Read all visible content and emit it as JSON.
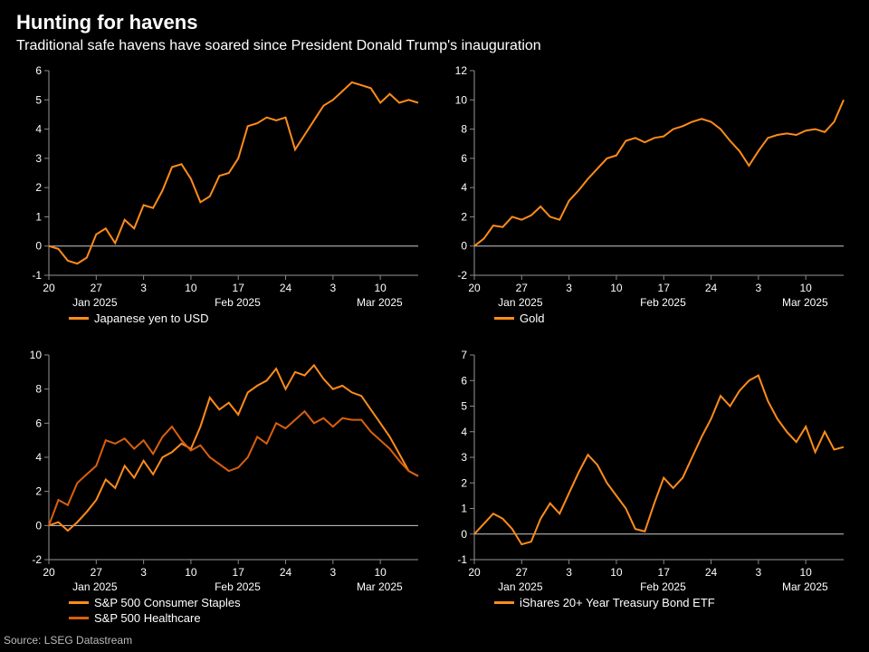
{
  "title": "Hunting for havens",
  "subtitle": "Traditional safe havens have soared since President Donald Trump's inauguration",
  "source": "Source: LSEG Datastream",
  "colors": {
    "bg": "#000000",
    "text": "#ffffff",
    "axis": "#999999",
    "zero": "#cccccc",
    "series1": "#ff8c1a",
    "series2": "#d95f0e"
  },
  "x_axis": {
    "ticks": [
      {
        "label": "20",
        "pos": 0
      },
      {
        "label": "27",
        "pos": 5
      },
      {
        "label": "3",
        "pos": 10
      },
      {
        "label": "10",
        "pos": 15
      },
      {
        "label": "17",
        "pos": 20
      },
      {
        "label": "24",
        "pos": 25
      },
      {
        "label": "3",
        "pos": 30
      },
      {
        "label": "10",
        "pos": 35
      }
    ],
    "months": [
      {
        "label": "Jan 2025",
        "pos": 2.5
      },
      {
        "label": "Feb 2025",
        "pos": 17.5
      },
      {
        "label": "Mar 2025",
        "pos": 32.5
      }
    ],
    "n_points": 40
  },
  "panels": [
    {
      "id": "yen",
      "ylim": [
        -1,
        6
      ],
      "ytick_step": 1,
      "legend": [
        {
          "label": "Japanese yen to USD",
          "color": "#ff8c1a"
        }
      ],
      "series": [
        {
          "color": "#ff8c1a",
          "values": [
            0,
            -0.1,
            -0.5,
            -0.6,
            -0.4,
            0.4,
            0.6,
            0.1,
            0.9,
            0.6,
            1.4,
            1.3,
            1.9,
            2.7,
            2.8,
            2.3,
            1.5,
            1.7,
            2.4,
            2.5,
            3.0,
            4.1,
            4.2,
            4.4,
            4.3,
            4.4,
            3.3,
            3.8,
            4.3,
            4.8,
            5.0,
            5.3,
            5.6,
            5.5,
            5.4,
            4.9,
            5.2,
            4.9,
            5.0,
            4.9
          ]
        }
      ]
    },
    {
      "id": "gold",
      "ylim": [
        -2,
        12
      ],
      "ytick_step": 2,
      "legend": [
        {
          "label": "Gold",
          "color": "#ff8c1a"
        }
      ],
      "series": [
        {
          "color": "#ff8c1a",
          "values": [
            0,
            0.5,
            1.4,
            1.3,
            2.0,
            1.8,
            2.1,
            2.7,
            2.0,
            1.8,
            3.1,
            3.8,
            4.6,
            5.3,
            6.0,
            6.2,
            7.2,
            7.4,
            7.1,
            7.4,
            7.5,
            8.0,
            8.2,
            8.5,
            8.7,
            8.5,
            8.0,
            7.2,
            6.5,
            5.5,
            6.5,
            7.4,
            7.6,
            7.7,
            7.6,
            7.9,
            8.0,
            7.8,
            8.5,
            10.0
          ]
        }
      ]
    },
    {
      "id": "sectors",
      "ylim": [
        -2,
        10
      ],
      "ytick_step": 2,
      "legend": [
        {
          "label": "S&P 500 Consumer Staples",
          "color": "#ff8c1a"
        },
        {
          "label": "S&P 500 Healthcare",
          "color": "#d95f0e"
        }
      ],
      "series": [
        {
          "color": "#ff8c1a",
          "values": [
            0,
            0.2,
            -0.3,
            0.2,
            0.8,
            1.5,
            2.7,
            2.2,
            3.5,
            2.8,
            3.8,
            3.0,
            4.0,
            4.3,
            4.8,
            4.5,
            5.8,
            7.5,
            6.8,
            7.2,
            6.5,
            7.8,
            8.2,
            8.5,
            9.2,
            8.0,
            9.0,
            8.8,
            9.4,
            8.6,
            8.0,
            8.2,
            7.8,
            7.6,
            6.8,
            6.0,
            5.2,
            4.2,
            3.2,
            2.9
          ]
        },
        {
          "color": "#d95f0e",
          "values": [
            0,
            1.5,
            1.2,
            2.5,
            3.0,
            3.5,
            5.0,
            4.8,
            5.1,
            4.5,
            5.0,
            4.2,
            5.2,
            5.8,
            5.0,
            4.4,
            4.7,
            4.0,
            3.6,
            3.2,
            3.4,
            4.0,
            5.2,
            4.8,
            6.0,
            5.7,
            6.2,
            6.7,
            6.0,
            6.3,
            5.8,
            6.3,
            6.2,
            6.2,
            5.5,
            5.0,
            4.5,
            3.8,
            3.2,
            2.9
          ]
        }
      ]
    },
    {
      "id": "tlt",
      "ylim": [
        -1,
        7
      ],
      "ytick_step": 1,
      "legend": [
        {
          "label": "iShares 20+ Year Treasury Bond ETF",
          "color": "#ff8c1a"
        }
      ],
      "series": [
        {
          "color": "#ff8c1a",
          "values": [
            0,
            0.4,
            0.8,
            0.6,
            0.2,
            -0.4,
            -0.3,
            0.6,
            1.2,
            0.8,
            1.6,
            2.4,
            3.1,
            2.7,
            2.0,
            1.5,
            1.0,
            0.2,
            0.1,
            1.2,
            2.2,
            1.8,
            2.2,
            3.0,
            3.8,
            4.5,
            5.4,
            5.0,
            5.6,
            6.0,
            6.2,
            5.2,
            4.5,
            4.0,
            3.6,
            4.2,
            3.2,
            4.0,
            3.3,
            3.4
          ]
        }
      ]
    }
  ]
}
